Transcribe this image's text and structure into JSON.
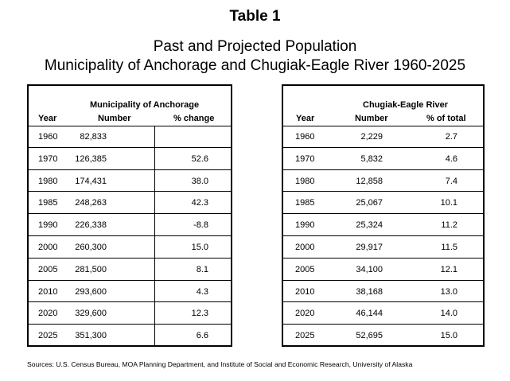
{
  "title": "Table 1",
  "subtitle1": "Past and Projected Population",
  "subtitle2": "Municipality of Anchorage and Chugiak-Eagle River 1960-2025",
  "anchorage": {
    "group_header": "Municipality of Anchorage",
    "col_year": "Year",
    "col_number": "Number",
    "col_change": "% change",
    "rows": [
      {
        "year": "1960",
        "number": "82,833",
        "change": ""
      },
      {
        "year": "1970",
        "number": "126,385",
        "change": "52.6"
      },
      {
        "year": "1980",
        "number": "174,431",
        "change": "38.0"
      },
      {
        "year": "1985",
        "number": "248,263",
        "change": "42.3"
      },
      {
        "year": "1990",
        "number": "226,338",
        "change": "-8.8"
      },
      {
        "year": "2000",
        "number": "260,300",
        "change": "15.0"
      },
      {
        "year": "2005",
        "number": "281,500",
        "change": "8.1"
      },
      {
        "year": "2010",
        "number": "293,600",
        "change": "4.3"
      },
      {
        "year": "2020",
        "number": "329,600",
        "change": "12.3"
      },
      {
        "year": "2025",
        "number": "351,300",
        "change": "6.6"
      }
    ]
  },
  "chugiak": {
    "group_header": "Chugiak-Eagle River",
    "col_year": "Year",
    "col_number": "Number",
    "col_total": "% of total",
    "rows": [
      {
        "year": "1960",
        "number": "2,229",
        "total": "2.7"
      },
      {
        "year": "1970",
        "number": "5,832",
        "total": "4.6"
      },
      {
        "year": "1980",
        "number": "12,858",
        "total": "7.4"
      },
      {
        "year": "1985",
        "number": "25,067",
        "total": "10.1"
      },
      {
        "year": "1990",
        "number": "25,324",
        "total": "11.2"
      },
      {
        "year": "2000",
        "number": "29,917",
        "total": "11.5"
      },
      {
        "year": "2005",
        "number": "34,100",
        "total": "12.1"
      },
      {
        "year": "2010",
        "number": "38,168",
        "total": "13.0"
      },
      {
        "year": "2020",
        "number": "46,144",
        "total": "14.0"
      },
      {
        "year": "2025",
        "number": "52,695",
        "total": "15.0"
      }
    ]
  },
  "source": "Sources:  U.S. Census Bureau, MOA Planning Department, and Institute of Social and Economic Research, University of Alaska"
}
